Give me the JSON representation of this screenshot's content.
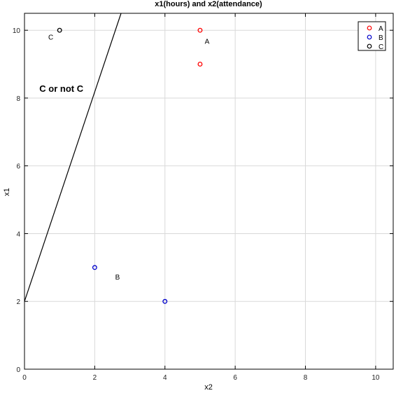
{
  "chart_data": {
    "type": "scatter",
    "title": "x1(hours) and x2(attendance)",
    "xlabel": "x2",
    "ylabel": "x1",
    "xlim": [
      0,
      10.5
    ],
    "ylim": [
      0,
      10.5
    ],
    "xticks": [
      0,
      2,
      4,
      6,
      8,
      10
    ],
    "yticks": [
      0,
      2,
      4,
      6,
      8,
      10
    ],
    "grid": true,
    "legend_position": "top-right",
    "series": [
      {
        "name": "A",
        "color": "#ff0000",
        "points": [
          {
            "x": 5,
            "y": 10
          },
          {
            "x": 5,
            "y": 9
          }
        ]
      },
      {
        "name": "B",
        "color": "#0000cc",
        "points": [
          {
            "x": 2,
            "y": 3
          },
          {
            "x": 4,
            "y": 2
          }
        ]
      },
      {
        "name": "C",
        "color": "#000000",
        "points": [
          {
            "x": 1,
            "y": 10
          }
        ]
      }
    ],
    "boundary_line": {
      "color": "#000000",
      "points": [
        {
          "x": 0,
          "y": 2
        },
        {
          "x": 2.75,
          "y": 10.5
        }
      ]
    },
    "annotations": [
      {
        "text": "A",
        "x": 5.2,
        "y": 9.6,
        "size": "small",
        "weight": "normal"
      },
      {
        "text": "B",
        "x": 2.65,
        "y": 2.65,
        "size": "small",
        "weight": "normal"
      },
      {
        "text": "C",
        "x": 0.75,
        "y": 9.72,
        "size": "small",
        "weight": "normal"
      },
      {
        "text": "C or not C",
        "x": 1.05,
        "y": 8.18,
        "size": "large",
        "weight": "bold"
      }
    ]
  }
}
